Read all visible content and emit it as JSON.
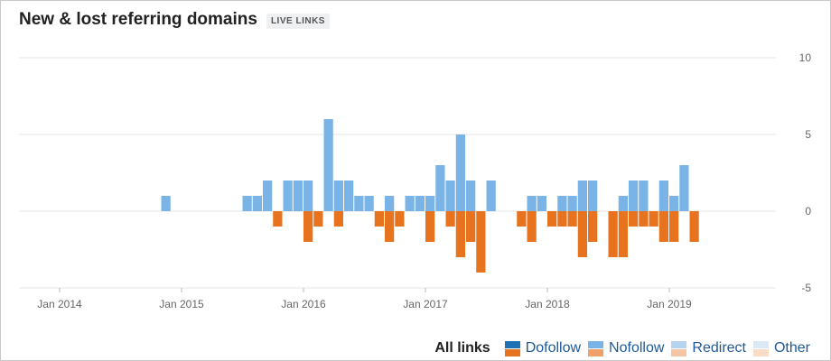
{
  "header": {
    "title": "New & lost referring domains",
    "badge": "LIVE LINKS"
  },
  "legend": {
    "all_label": "All links",
    "items": [
      {
        "label": "Dofollow",
        "color_new": "#1f6fb4",
        "color_lost": "#e8731f"
      },
      {
        "label": "Nofollow",
        "color_new": "#7ab3e6",
        "color_lost": "#f0a06a"
      },
      {
        "label": "Redirect",
        "color_new": "#b5d2ee",
        "color_lost": "#f5c4a3"
      },
      {
        "label": "Other",
        "color_new": "#dce9f5",
        "color_lost": "#f8dcc8"
      }
    ]
  },
  "chart_data": {
    "type": "bar",
    "title": "New & lost referring domains",
    "x_start": "Sep 2013",
    "x_ticks": [
      "Jan 2014",
      "Jan 2015",
      "Jan 2016",
      "Jan 2017",
      "Jan 2018",
      "Jan 2019"
    ],
    "y_ticks": [
      "10",
      "5",
      "0",
      "-5"
    ],
    "ylim": [
      -5,
      10
    ],
    "grid": true,
    "legend_position": "bottom-right",
    "colors": {
      "new": "#7ab3e6",
      "lost": "#e8731f"
    },
    "series": [
      {
        "name": "New",
        "months": [
          "2014-11",
          "2015-07",
          "2015-08",
          "2015-09",
          "2015-11",
          "2015-12",
          "2016-01",
          "2016-03",
          "2016-04",
          "2016-05",
          "2016-06",
          "2016-07",
          "2016-09",
          "2016-11",
          "2016-12",
          "2017-01",
          "2017-02",
          "2017-03",
          "2017-04",
          "2017-05",
          "2017-07",
          "2017-11",
          "2017-12",
          "2018-02",
          "2018-03",
          "2018-04",
          "2018-05",
          "2018-08",
          "2018-09",
          "2018-10",
          "2018-12",
          "2019-01",
          "2019-02"
        ],
        "values": [
          1,
          1,
          1,
          2,
          2,
          2,
          2,
          6,
          2,
          2,
          1,
          1,
          1,
          1,
          1,
          1,
          3,
          2,
          5,
          2,
          2,
          1,
          1,
          1,
          1,
          2,
          2,
          1,
          2,
          2,
          2,
          1,
          3
        ]
      },
      {
        "name": "Lost",
        "months": [
          "2015-10",
          "2016-01",
          "2016-02",
          "2016-04",
          "2016-08",
          "2016-09",
          "2016-10",
          "2017-01",
          "2017-03",
          "2017-04",
          "2017-05",
          "2017-06",
          "2017-10",
          "2017-11",
          "2018-01",
          "2018-02",
          "2018-03",
          "2018-04",
          "2018-05",
          "2018-07",
          "2018-08",
          "2018-09",
          "2018-10",
          "2018-11",
          "2018-12",
          "2019-01",
          "2019-03"
        ],
        "values": [
          -1,
          -2,
          -1,
          -1,
          -1,
          -2,
          -1,
          -2,
          -1,
          -3,
          -2,
          -4,
          -1,
          -2,
          -1,
          -1,
          -1,
          -3,
          -2,
          -3,
          -3,
          -1,
          -1,
          -1,
          -2,
          -2,
          -2
        ]
      }
    ]
  }
}
